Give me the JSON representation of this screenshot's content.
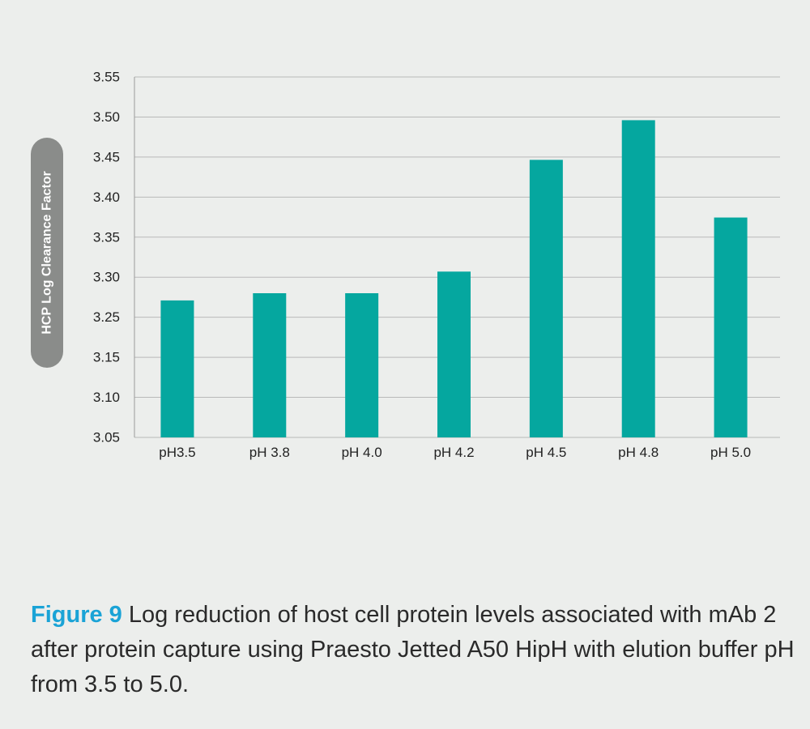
{
  "chart_data": {
    "type": "bar",
    "categories": [
      "pH3.5",
      "pH 3.8",
      "pH 4.0",
      "pH 4.2",
      "pH 4.5",
      "pH 4.8",
      "pH 5.0"
    ],
    "values": [
      3.24,
      3.25,
      3.25,
      3.28,
      3.435,
      3.49,
      3.355
    ],
    "ylabel": "HCP Log Clearance Factor",
    "xlabel": "",
    "ylim": [
      3.05,
      3.55
    ],
    "yticks": [
      "3.05",
      "3.10",
      "3.15",
      "3.25",
      "3.30",
      "3.35",
      "3.40",
      "3.45",
      "3.50",
      "3.55"
    ],
    "grid": "horizontal",
    "legend": "none"
  },
  "colors": {
    "bar": "#05a79f",
    "grid": "#b9b9b9",
    "ylabel_pill": "#8a8c8a",
    "caption_label": "#1aa3d6"
  },
  "caption": {
    "label": "Figure 9",
    "text": " Log reduction of host cell protein levels associated with mAb 2 after protein capture using Praesto Jetted A50 HipH with elution buffer pH from 3.5 to 5.0."
  }
}
